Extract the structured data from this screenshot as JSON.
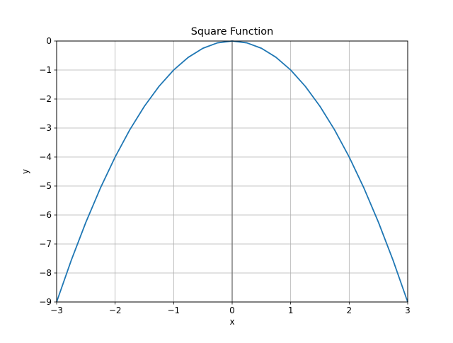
{
  "chart_data": {
    "type": "line",
    "title": "Square Function",
    "xlabel": "x",
    "ylabel": "y",
    "xlim": [
      -3,
      3
    ],
    "ylim": [
      -9,
      0
    ],
    "x_ticks": [
      -3,
      -2,
      -1,
      0,
      1,
      2,
      3
    ],
    "x_tick_labels": [
      "−3",
      "−2",
      "−1",
      "0",
      "1",
      "2",
      "3"
    ],
    "y_ticks": [
      0,
      -1,
      -2,
      -3,
      -4,
      -5,
      -6,
      -7,
      -8,
      -9
    ],
    "y_tick_labels": [
      "0",
      "−1",
      "−2",
      "−3",
      "−4",
      "−5",
      "−6",
      "−7",
      "−8",
      "−9"
    ],
    "grid": true,
    "series": [
      {
        "color": "#1f77b4",
        "x": [
          -3,
          -2.75,
          -2.5,
          -2.25,
          -2,
          -1.75,
          -1.5,
          -1.25,
          -1,
          -0.75,
          -0.5,
          -0.25,
          0,
          0.25,
          0.5,
          0.75,
          1,
          1.25,
          1.5,
          1.75,
          2,
          2.25,
          2.5,
          2.75,
          3
        ],
        "y": [
          -9,
          -7.5625,
          -6.25,
          -5.0625,
          -4,
          -3.0625,
          -2.25,
          -1.5625,
          -1,
          -0.5625,
          -0.25,
          -0.0625,
          0,
          -0.0625,
          -0.25,
          -0.5625,
          -1,
          -1.5625,
          -2.25,
          -3.0625,
          -4,
          -5.0625,
          -6.25,
          -7.5625,
          -9
        ]
      }
    ],
    "reference_lines": [
      {
        "orientation": "vertical",
        "x": 0,
        "color": "#808080"
      }
    ]
  }
}
